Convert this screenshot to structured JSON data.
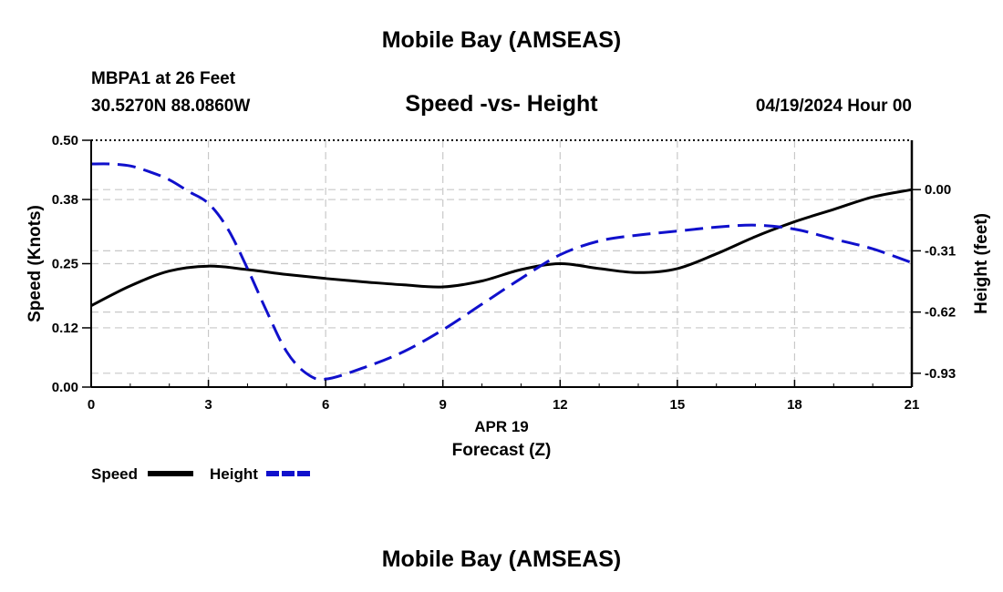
{
  "header": {
    "title": "Mobile Bay (AMSEAS)",
    "station": "MBPA1 at 26 Feet",
    "coords": "30.5270N  88.0860W",
    "subtitle": "Speed -vs- Height",
    "date": "04/19/2024 Hour 00"
  },
  "footer": {
    "title": "Mobile Bay (AMSEAS)"
  },
  "chart_data": {
    "type": "line",
    "title": "Speed -vs- Height",
    "xlabel_date": "APR 19",
    "xlabel": "Forecast (Z)",
    "ylabel": "Speed (Knots)",
    "y2label": "Height (feet)",
    "xlim": [
      0,
      21
    ],
    "ylim": [
      0,
      0.5
    ],
    "y2lim": [
      -1.0,
      0.25
    ],
    "x_ticks": [
      0,
      3,
      6,
      9,
      12,
      15,
      18,
      21
    ],
    "y_ticks": [
      "0.00",
      "0.12",
      "0.25",
      "0.38",
      "0.50"
    ],
    "y2_ticks": [
      "0.00",
      "-0.31",
      "-0.62",
      "-0.93"
    ],
    "grid": true,
    "colors": {
      "speed": "#000000",
      "height": "#1010cc",
      "grid": "#c8c8c8"
    },
    "series": [
      {
        "name": "Speed",
        "axis": "left",
        "x": [
          0,
          1,
          2,
          3,
          4,
          5,
          6,
          7,
          8,
          9,
          10,
          11,
          12,
          13,
          14,
          15,
          16,
          17,
          18,
          19,
          20,
          21
        ],
        "values": [
          0.165,
          0.205,
          0.235,
          0.245,
          0.238,
          0.228,
          0.22,
          0.213,
          0.207,
          0.203,
          0.215,
          0.238,
          0.25,
          0.24,
          0.232,
          0.24,
          0.27,
          0.305,
          0.335,
          0.36,
          0.385,
          0.4
        ]
      },
      {
        "name": "Height",
        "axis": "right",
        "x": [
          0,
          0.5,
          1,
          1.5,
          2,
          2.5,
          3,
          3.5,
          4,
          4.5,
          5,
          5.5,
          6,
          7,
          8,
          9,
          10,
          11,
          12,
          13,
          14,
          15,
          16,
          17,
          18,
          19,
          20,
          21
        ],
        "values": [
          0.13,
          0.13,
          0.12,
          0.09,
          0.05,
          -0.01,
          -0.07,
          -0.2,
          -0.4,
          -0.62,
          -0.82,
          -0.93,
          -0.96,
          -0.9,
          -0.82,
          -0.71,
          -0.58,
          -0.45,
          -0.33,
          -0.26,
          -0.23,
          -0.21,
          -0.19,
          -0.18,
          -0.2,
          -0.25,
          -0.3,
          -0.37
        ]
      }
    ],
    "legend": [
      {
        "name": "Speed",
        "color": "#000000",
        "style": "solid"
      },
      {
        "name": "Height",
        "color": "#1010cc",
        "style": "dashed"
      }
    ],
    "legend_position": "bottom-left"
  }
}
